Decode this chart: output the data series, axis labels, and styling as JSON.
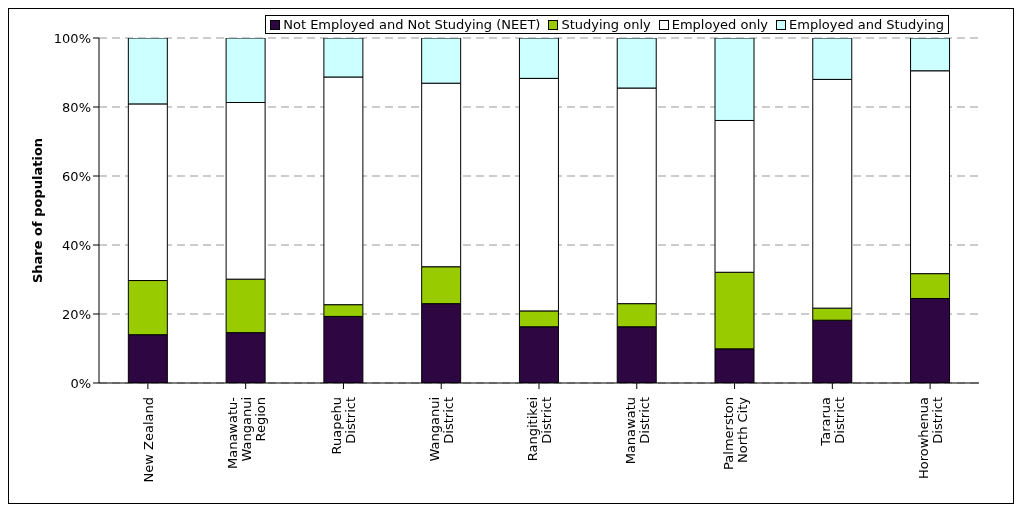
{
  "chart_data": {
    "type": "bar",
    "stacked": true,
    "ylabel": "Share of population",
    "categories": [
      "New Zealand",
      "Manawatu-Wanganui Region",
      "Ruapehu District",
      "Wanganui District",
      "Rangitikei District",
      "Manawatu District",
      "Palmerston North City",
      "Tararua District",
      "Horowhenua District"
    ],
    "series": [
      {
        "name": "Not Employed and Not Studying (NEET)",
        "color": "#2e0742",
        "values": [
          14.0,
          14.6,
          19.3,
          23.0,
          16.3,
          16.3,
          9.9,
          18.2,
          24.5
        ]
      },
      {
        "name": "Studying only",
        "color": "#99cc00",
        "values": [
          15.7,
          15.5,
          3.4,
          10.7,
          4.6,
          6.7,
          22.2,
          3.5,
          7.2
        ]
      },
      {
        "name": "Employed only",
        "color": "#ffffff",
        "values": [
          51.2,
          51.2,
          66.0,
          53.2,
          67.4,
          62.5,
          44.0,
          66.3,
          58.8
        ]
      },
      {
        "name": "Employed and Studying",
        "color": "#ccffff",
        "values": [
          19.1,
          18.7,
          11.3,
          13.1,
          11.7,
          14.5,
          23.9,
          12.0,
          9.5
        ]
      }
    ],
    "ylim": [
      0,
      100
    ],
    "yticks": [
      {
        "value": 0,
        "label": "0%"
      },
      {
        "value": 20,
        "label": "20%"
      },
      {
        "value": 40,
        "label": "40%"
      },
      {
        "value": 60,
        "label": "60%"
      },
      {
        "value": 80,
        "label": "80%"
      },
      {
        "value": 100,
        "label": "100%"
      }
    ],
    "grid": "y",
    "legend": "top"
  }
}
